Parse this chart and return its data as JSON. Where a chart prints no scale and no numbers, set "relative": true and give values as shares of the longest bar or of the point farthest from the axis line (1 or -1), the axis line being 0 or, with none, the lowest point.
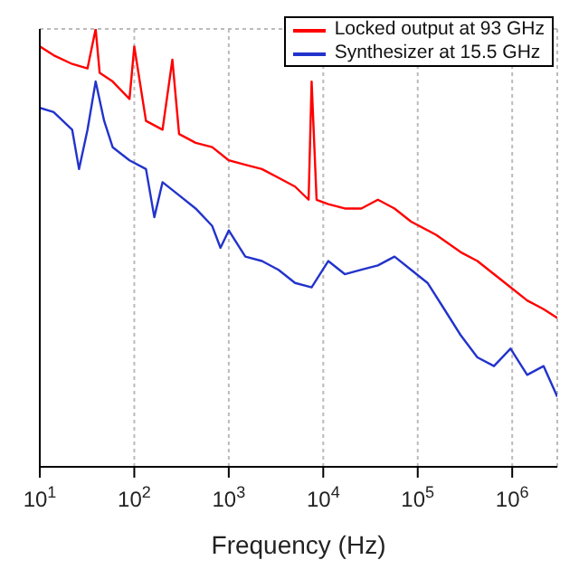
{
  "chart_data": {
    "type": "line",
    "relative": true,
    "xlabel": "Frequency (Hz)",
    "log": "x",
    "grid": true,
    "line_style": "solid",
    "marker": "none",
    "legend": "top right",
    "xlim": [
      10,
      3000000
    ],
    "xticks": [
      {
        "value": 10,
        "label": "10$^{1}$"
      },
      {
        "value": 100,
        "label": "10$^{2}$"
      },
      {
        "value": 1000,
        "label": "10$^{3}$"
      },
      {
        "value": 10000,
        "label": "10$^{4}$"
      },
      {
        "value": 100000,
        "label": "10$^{5}$"
      },
      {
        "value": 1000000,
        "label": "10$^{6}$"
      }
    ],
    "series": [
      {
        "name": "Locked output at 93 GHz",
        "color": "#ff0000",
        "x": [
          10,
          14,
          22,
          32,
          39,
          43,
          59,
          89,
          100,
          133,
          199,
          253,
          298,
          446,
          668,
          1000,
          1497,
          2243,
          3358,
          5030,
          7000,
          7534,
          8500,
          11290,
          16900,
          25300,
          37900,
          56800,
          85100,
          156000,
          286000,
          428000,
          641000,
          960000,
          1440000,
          2150000,
          3000000
        ],
        "values": [
          0.96,
          0.94,
          0.92,
          0.91,
          1.0,
          0.9,
          0.88,
          0.84,
          0.96,
          0.79,
          0.77,
          0.93,
          0.76,
          0.74,
          0.73,
          0.7,
          0.69,
          0.68,
          0.66,
          0.64,
          0.61,
          0.88,
          0.61,
          0.6,
          0.59,
          0.59,
          0.61,
          0.59,
          0.56,
          0.53,
          0.49,
          0.47,
          0.44,
          0.41,
          0.38,
          0.36,
          0.34
        ]
      },
      {
        "name": "Synthesizer at 15.5 GHz",
        "color": "#2233cc",
        "x": [
          10,
          14,
          22,
          26,
          32,
          39,
          48,
          59,
          89,
          133,
          163,
          199,
          298,
          446,
          668,
          817,
          1000,
          1497,
          2243,
          3358,
          5030,
          7534,
          11290,
          16900,
          25300,
          37900,
          56800,
          85100,
          127000,
          191000,
          286000,
          428000,
          641000,
          960000,
          1440000,
          2150000,
          3000000
        ],
        "values": [
          0.82,
          0.81,
          0.77,
          0.68,
          0.77,
          0.88,
          0.79,
          0.73,
          0.7,
          0.68,
          0.57,
          0.65,
          0.62,
          0.59,
          0.55,
          0.5,
          0.54,
          0.48,
          0.47,
          0.45,
          0.42,
          0.41,
          0.47,
          0.44,
          0.45,
          0.46,
          0.48,
          0.45,
          0.42,
          0.36,
          0.3,
          0.25,
          0.23,
          0.27,
          0.21,
          0.23,
          0.16
        ]
      }
    ]
  }
}
